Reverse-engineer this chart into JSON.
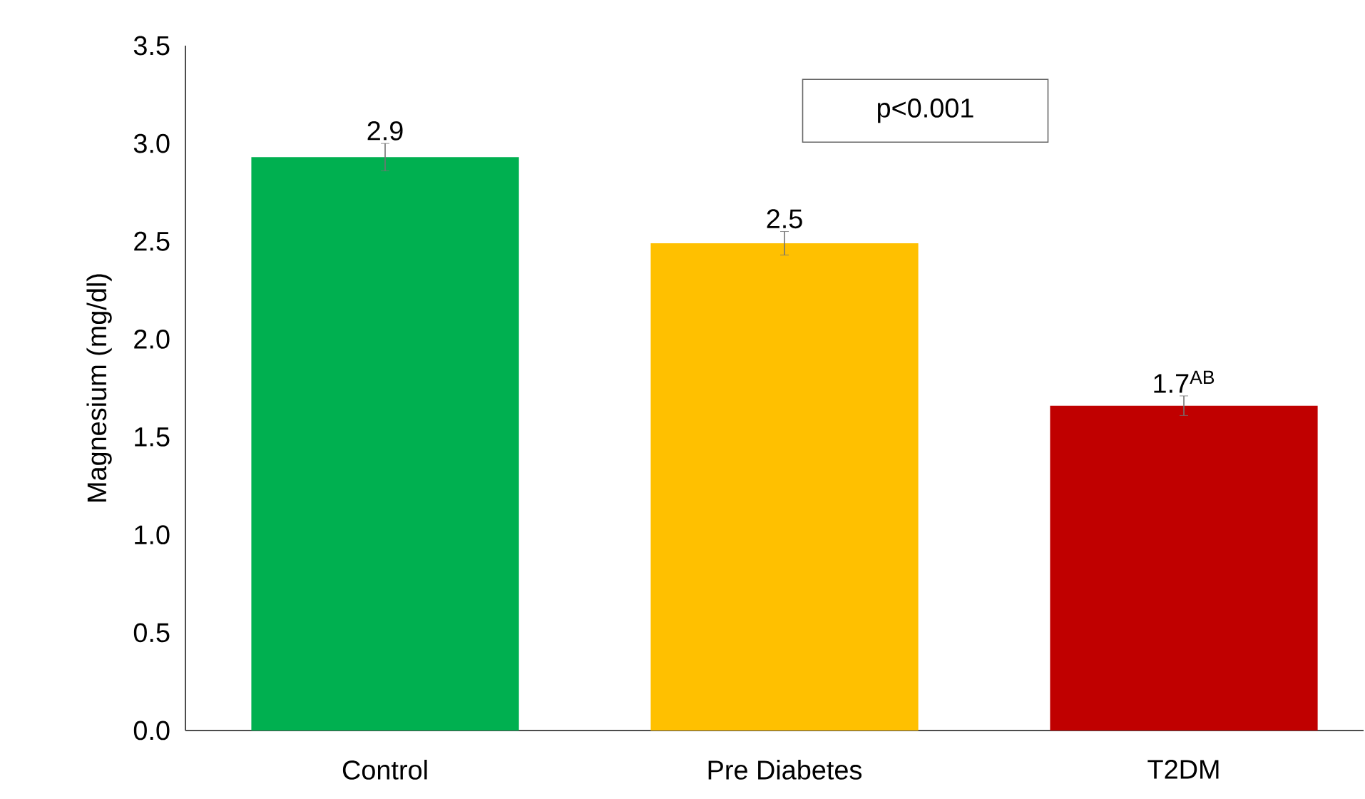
{
  "chart_data": {
    "type": "bar",
    "ylabel": "Magnesium (mg/dl)",
    "categories": [
      "Control",
      "Pre Diabetes",
      "T2DM"
    ],
    "values": [
      2.93,
      2.49,
      1.66
    ],
    "errors": [
      0.07,
      0.06,
      0.05
    ],
    "colors": [
      "#00b050",
      "#ffc000",
      "#c00000"
    ],
    "value_labels": [
      "2.9",
      "2.5",
      "1.7$^{AB}$"
    ],
    "ylim": [
      0,
      3.5
    ],
    "yticks": [
      {
        "value": 0,
        "label": "0.0"
      },
      {
        "value": 0.5,
        "label": "0.5"
      },
      {
        "value": 1,
        "label": "1.0"
      },
      {
        "value": 1.5,
        "label": "1.5"
      },
      {
        "value": 2,
        "label": "2.0"
      },
      {
        "value": 2.5,
        "label": "2.5"
      },
      {
        "value": 3,
        "label": "3.0"
      },
      {
        "value": 3.5,
        "label": "3.5"
      }
    ],
    "annotations": [
      "p<0.001"
    ]
  }
}
